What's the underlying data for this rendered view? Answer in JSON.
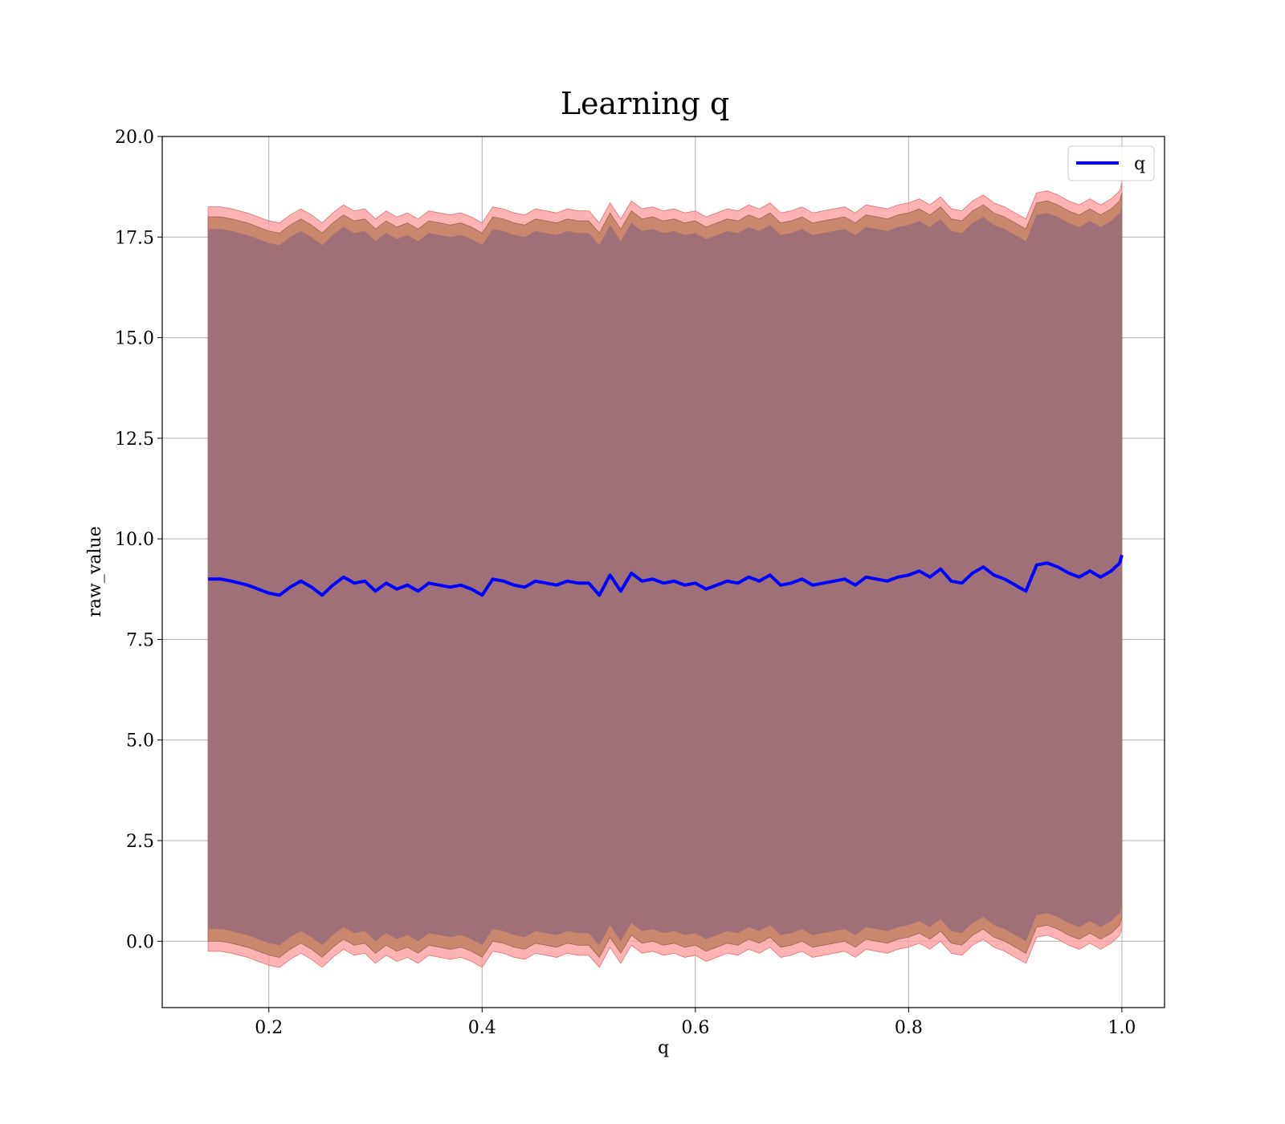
{
  "chart_data": {
    "type": "line",
    "title": "Learning q",
    "xlabel": "q",
    "ylabel": "raw_value",
    "xlim": [
      0.1,
      1.04
    ],
    "ylim": [
      -1.65,
      20.0
    ],
    "xticks": [
      0.2,
      0.4,
      0.6,
      0.8,
      1.0
    ],
    "xtick_labels": [
      "0.2",
      "0.4",
      "0.6",
      "0.8",
      "1.0"
    ],
    "yticks": [
      0.0,
      2.5,
      5.0,
      7.5,
      10.0,
      12.5,
      15.0,
      17.5,
      20.0
    ],
    "ytick_labels": [
      "0.0",
      "2.5",
      "5.0",
      "7.5",
      "10.0",
      "12.5",
      "15.0",
      "17.5",
      "20.0"
    ],
    "grid": true,
    "legend": {
      "position": "top-right",
      "entries": [
        "q"
      ]
    },
    "colors": {
      "line": "#0000ff",
      "band_outer": "#ff9999",
      "band_middle": "#c08060",
      "band_inner": "#a07078",
      "grid": "#b0b0b0"
    },
    "bands": {
      "inner_half_width": 8.7,
      "middle_half_width": 9.0,
      "outer_half_width": 9.25
    },
    "series": [
      {
        "name": "q",
        "x": [
          0.143,
          0.155,
          0.165,
          0.18,
          0.19,
          0.2,
          0.21,
          0.22,
          0.23,
          0.24,
          0.25,
          0.26,
          0.27,
          0.28,
          0.29,
          0.3,
          0.31,
          0.32,
          0.33,
          0.34,
          0.35,
          0.36,
          0.37,
          0.38,
          0.39,
          0.4,
          0.41,
          0.42,
          0.43,
          0.44,
          0.45,
          0.46,
          0.47,
          0.48,
          0.49,
          0.5,
          0.51,
          0.52,
          0.53,
          0.54,
          0.55,
          0.56,
          0.57,
          0.58,
          0.59,
          0.6,
          0.61,
          0.62,
          0.63,
          0.64,
          0.65,
          0.66,
          0.67,
          0.68,
          0.69,
          0.7,
          0.71,
          0.72,
          0.73,
          0.74,
          0.75,
          0.76,
          0.77,
          0.78,
          0.79,
          0.8,
          0.81,
          0.82,
          0.83,
          0.84,
          0.85,
          0.86,
          0.87,
          0.88,
          0.89,
          0.9,
          0.91,
          0.92,
          0.93,
          0.94,
          0.95,
          0.96,
          0.97,
          0.98,
          0.99,
          0.998,
          1.0
        ],
        "values": [
          9.0,
          9.0,
          8.95,
          8.85,
          8.75,
          8.65,
          8.6,
          8.8,
          8.95,
          8.8,
          8.6,
          8.85,
          9.05,
          8.9,
          8.95,
          8.7,
          8.9,
          8.75,
          8.85,
          8.7,
          8.9,
          8.85,
          8.8,
          8.85,
          8.75,
          8.6,
          9.0,
          8.95,
          8.85,
          8.8,
          8.95,
          8.9,
          8.85,
          8.95,
          8.9,
          8.9,
          8.6,
          9.1,
          8.7,
          9.15,
          8.95,
          9.0,
          8.9,
          8.95,
          8.85,
          8.9,
          8.75,
          8.85,
          8.95,
          8.9,
          9.05,
          8.95,
          9.1,
          8.85,
          8.9,
          9.0,
          8.85,
          8.9,
          8.95,
          9.0,
          8.85,
          9.05,
          9.0,
          8.95,
          9.05,
          9.1,
          9.2,
          9.05,
          9.25,
          8.95,
          8.9,
          9.15,
          9.3,
          9.1,
          9.0,
          8.85,
          8.7,
          9.35,
          9.4,
          9.3,
          9.15,
          9.05,
          9.2,
          9.05,
          9.2,
          9.4,
          9.6
        ]
      }
    ]
  }
}
